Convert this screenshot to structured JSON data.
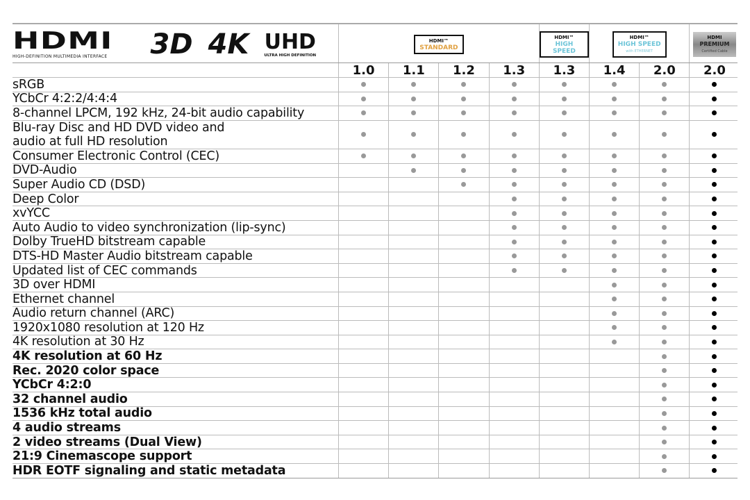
{
  "chart_data": {
    "type": "table",
    "logos": {
      "hdmi": "HDMI",
      "hdmi_tagline": "HIGH-DEFINITION MULTIMEDIA INTERFACE",
      "tm": "™",
      "three_d": "3D",
      "four_k": "4K",
      "uhd": "UHD",
      "uhd_tagline": "ULTRA HIGH DEFINITION"
    },
    "cable_groups": [
      {
        "logo": "HDMI™",
        "name": "STANDARD",
        "sub": "",
        "color": "#e0a040",
        "span": 4
      },
      {
        "logo": "HDMI™",
        "name": "HIGH SPEED",
        "sub": "",
        "color": "#6cc4d8",
        "span": 1
      },
      {
        "logo": "HDMI™",
        "name": "HIGH SPEED",
        "sub": "with ETHERNET",
        "color": "#6cc4d8",
        "span": 2
      },
      {
        "logo": "HDMI",
        "name": "PREMIUM",
        "sub": "Certified Cable",
        "color": "#222222",
        "span": 1
      }
    ],
    "versions": [
      "1.0",
      "1.1",
      "1.2",
      "1.3",
      "1.3",
      "1.4",
      "2.0",
      "2.0"
    ],
    "dot_colors": {
      "standard": "#999999",
      "premium": "#000000"
    },
    "rows": [
      {
        "feature": "sRGB",
        "bold": false,
        "supported_from": "1.0"
      },
      {
        "feature": "YCbCr 4:2:2/4:4:4",
        "bold": false,
        "supported_from": "1.0"
      },
      {
        "feature": "8-channel LPCM, 192 kHz, 24-bit audio capability",
        "bold": false,
        "supported_from": "1.0"
      },
      {
        "feature": "Blu-ray Disc and HD DVD video and\naudio at full HD resolution",
        "bold": false,
        "supported_from": "1.0",
        "double": true
      },
      {
        "feature": "Consumer Electronic Control (CEC)",
        "bold": false,
        "supported_from": "1.0"
      },
      {
        "feature": "DVD-Audio",
        "bold": false,
        "supported_from": "1.1"
      },
      {
        "feature": "Super Audio CD (DSD)",
        "bold": false,
        "supported_from": "1.2"
      },
      {
        "feature": "Deep Color",
        "bold": false,
        "supported_from": "1.3"
      },
      {
        "feature": "xvYCC",
        "bold": false,
        "supported_from": "1.3"
      },
      {
        "feature": "Auto Audio to video synchronization (lip-sync)",
        "bold": false,
        "supported_from": "1.3"
      },
      {
        "feature": "Dolby TrueHD bitstream capable",
        "bold": false,
        "supported_from": "1.3"
      },
      {
        "feature": "DTS-HD Master Audio bitstream capable",
        "bold": false,
        "supported_from": "1.3"
      },
      {
        "feature": "Updated list of CEC commands",
        "bold": false,
        "supported_from": "1.3"
      },
      {
        "feature": "3D over HDMI",
        "bold": false,
        "supported_from": "1.4"
      },
      {
        "feature": "Ethernet channel",
        "bold": false,
        "supported_from": "1.4"
      },
      {
        "feature": "Audio return channel (ARC)",
        "bold": false,
        "supported_from": "1.4"
      },
      {
        "feature": "1920x1080 resolution at 120 Hz",
        "bold": false,
        "supported_from": "1.4"
      },
      {
        "feature": "4K resolution at 30 Hz",
        "bold": false,
        "supported_from": "1.4"
      },
      {
        "feature": "4K resolution at 60 Hz",
        "bold": true,
        "supported_from": "2.0"
      },
      {
        "feature": "Rec. 2020 color space",
        "bold": true,
        "supported_from": "2.0"
      },
      {
        "feature": "YCbCr 4:2:0",
        "bold": true,
        "supported_from": "2.0"
      },
      {
        "feature": "32 channel audio",
        "bold": true,
        "supported_from": "2.0"
      },
      {
        "feature": "1536 kHz total audio",
        "bold": true,
        "supported_from": "2.0"
      },
      {
        "feature": "4 audio streams",
        "bold": true,
        "supported_from": "2.0"
      },
      {
        "feature": "2 video streams (Dual View)",
        "bold": true,
        "supported_from": "2.0"
      },
      {
        "feature": "21:9 Cinemascope support",
        "bold": true,
        "supported_from": "2.0"
      },
      {
        "feature": "HDR EOTF signaling and static metadata",
        "bold": true,
        "supported_from": "2.0"
      }
    ]
  }
}
